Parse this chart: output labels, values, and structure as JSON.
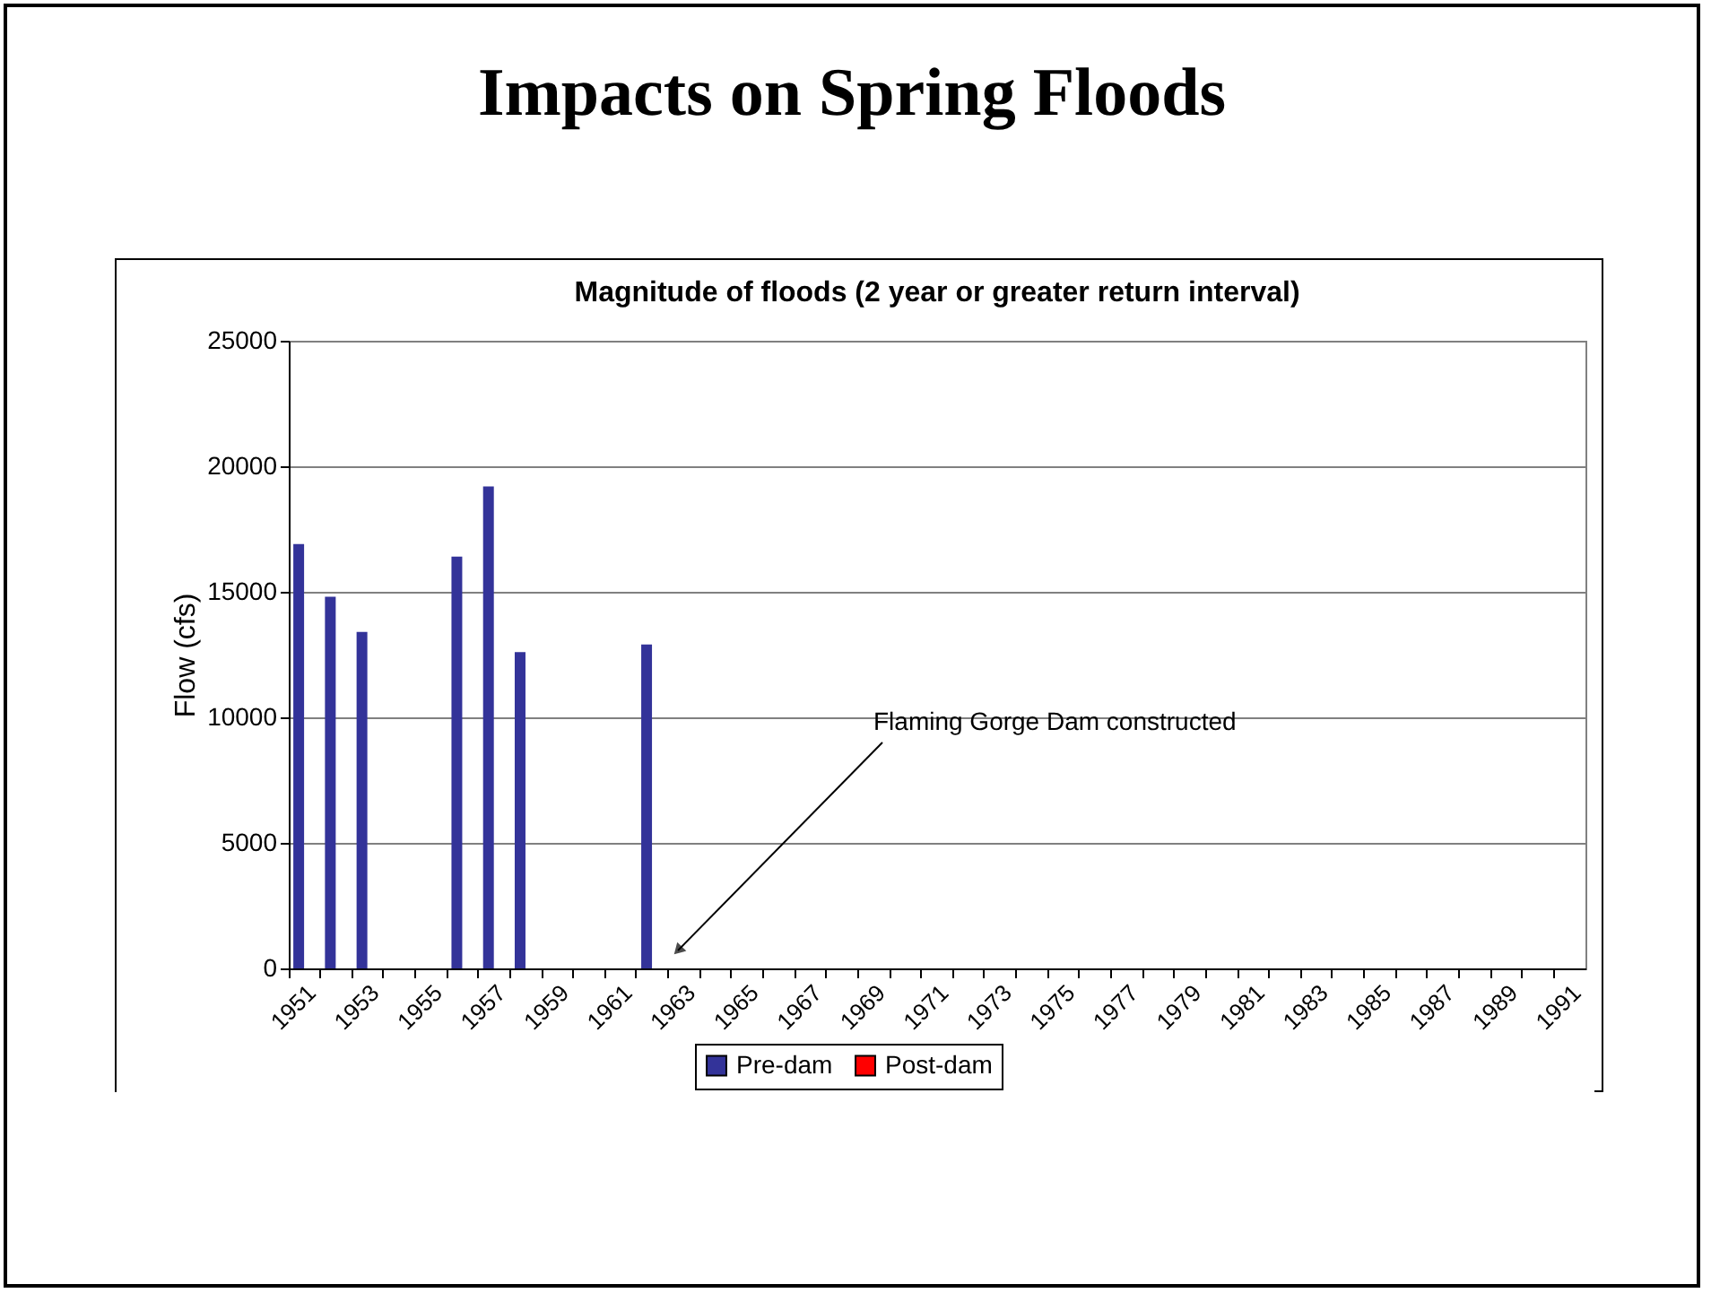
{
  "chart_data": {
    "type": "bar",
    "title": "Impacts on Spring Floods",
    "subtitle": "Magnitude of floods (2 year or greater return interval)",
    "ylabel": "Flow (cfs)",
    "categories": [
      "1951",
      null,
      "1953",
      null,
      "1955",
      null,
      "1957",
      null,
      "1959",
      null,
      "1961",
      null,
      "1963",
      null,
      "1965",
      null,
      "1967",
      null,
      "1969",
      null,
      "1971",
      null,
      "1973",
      null,
      "1975",
      null,
      "1977",
      null,
      "1979",
      null,
      "1981",
      null,
      "1983",
      null,
      "1985",
      null,
      "1987",
      null,
      "1989",
      null,
      "1991"
    ],
    "series": [
      {
        "name": "Pre-dam",
        "color": "#333399",
        "values": [
          16900,
          14800,
          13400,
          null,
          null,
          16400,
          19200,
          12600,
          null,
          null,
          null,
          12900,
          null,
          null,
          null,
          null,
          null,
          null,
          null,
          null,
          null,
          null,
          null,
          null,
          null,
          null,
          null,
          null,
          null,
          null,
          null,
          null,
          null,
          null,
          null,
          null,
          null,
          null,
          null,
          null,
          null
        ]
      },
      {
        "name": "Post-dam",
        "color": "#ff0000",
        "values": [
          null,
          null,
          null,
          null,
          null,
          null,
          null,
          null,
          null,
          null,
          null,
          null,
          null,
          null,
          null,
          null,
          null,
          null,
          null,
          null,
          null,
          null,
          null,
          null,
          null,
          null,
          null,
          null,
          null,
          null,
          null,
          null,
          null,
          null,
          null,
          null,
          null,
          null,
          null,
          null,
          null
        ]
      }
    ],
    "ylim": [
      0,
      25000
    ],
    "yticks": [
      0,
      5000,
      10000,
      15000,
      20000,
      25000
    ],
    "grid": "y",
    "legend": "bottom",
    "annotations": [
      "Flaming Gorge Dam constructed"
    ]
  }
}
